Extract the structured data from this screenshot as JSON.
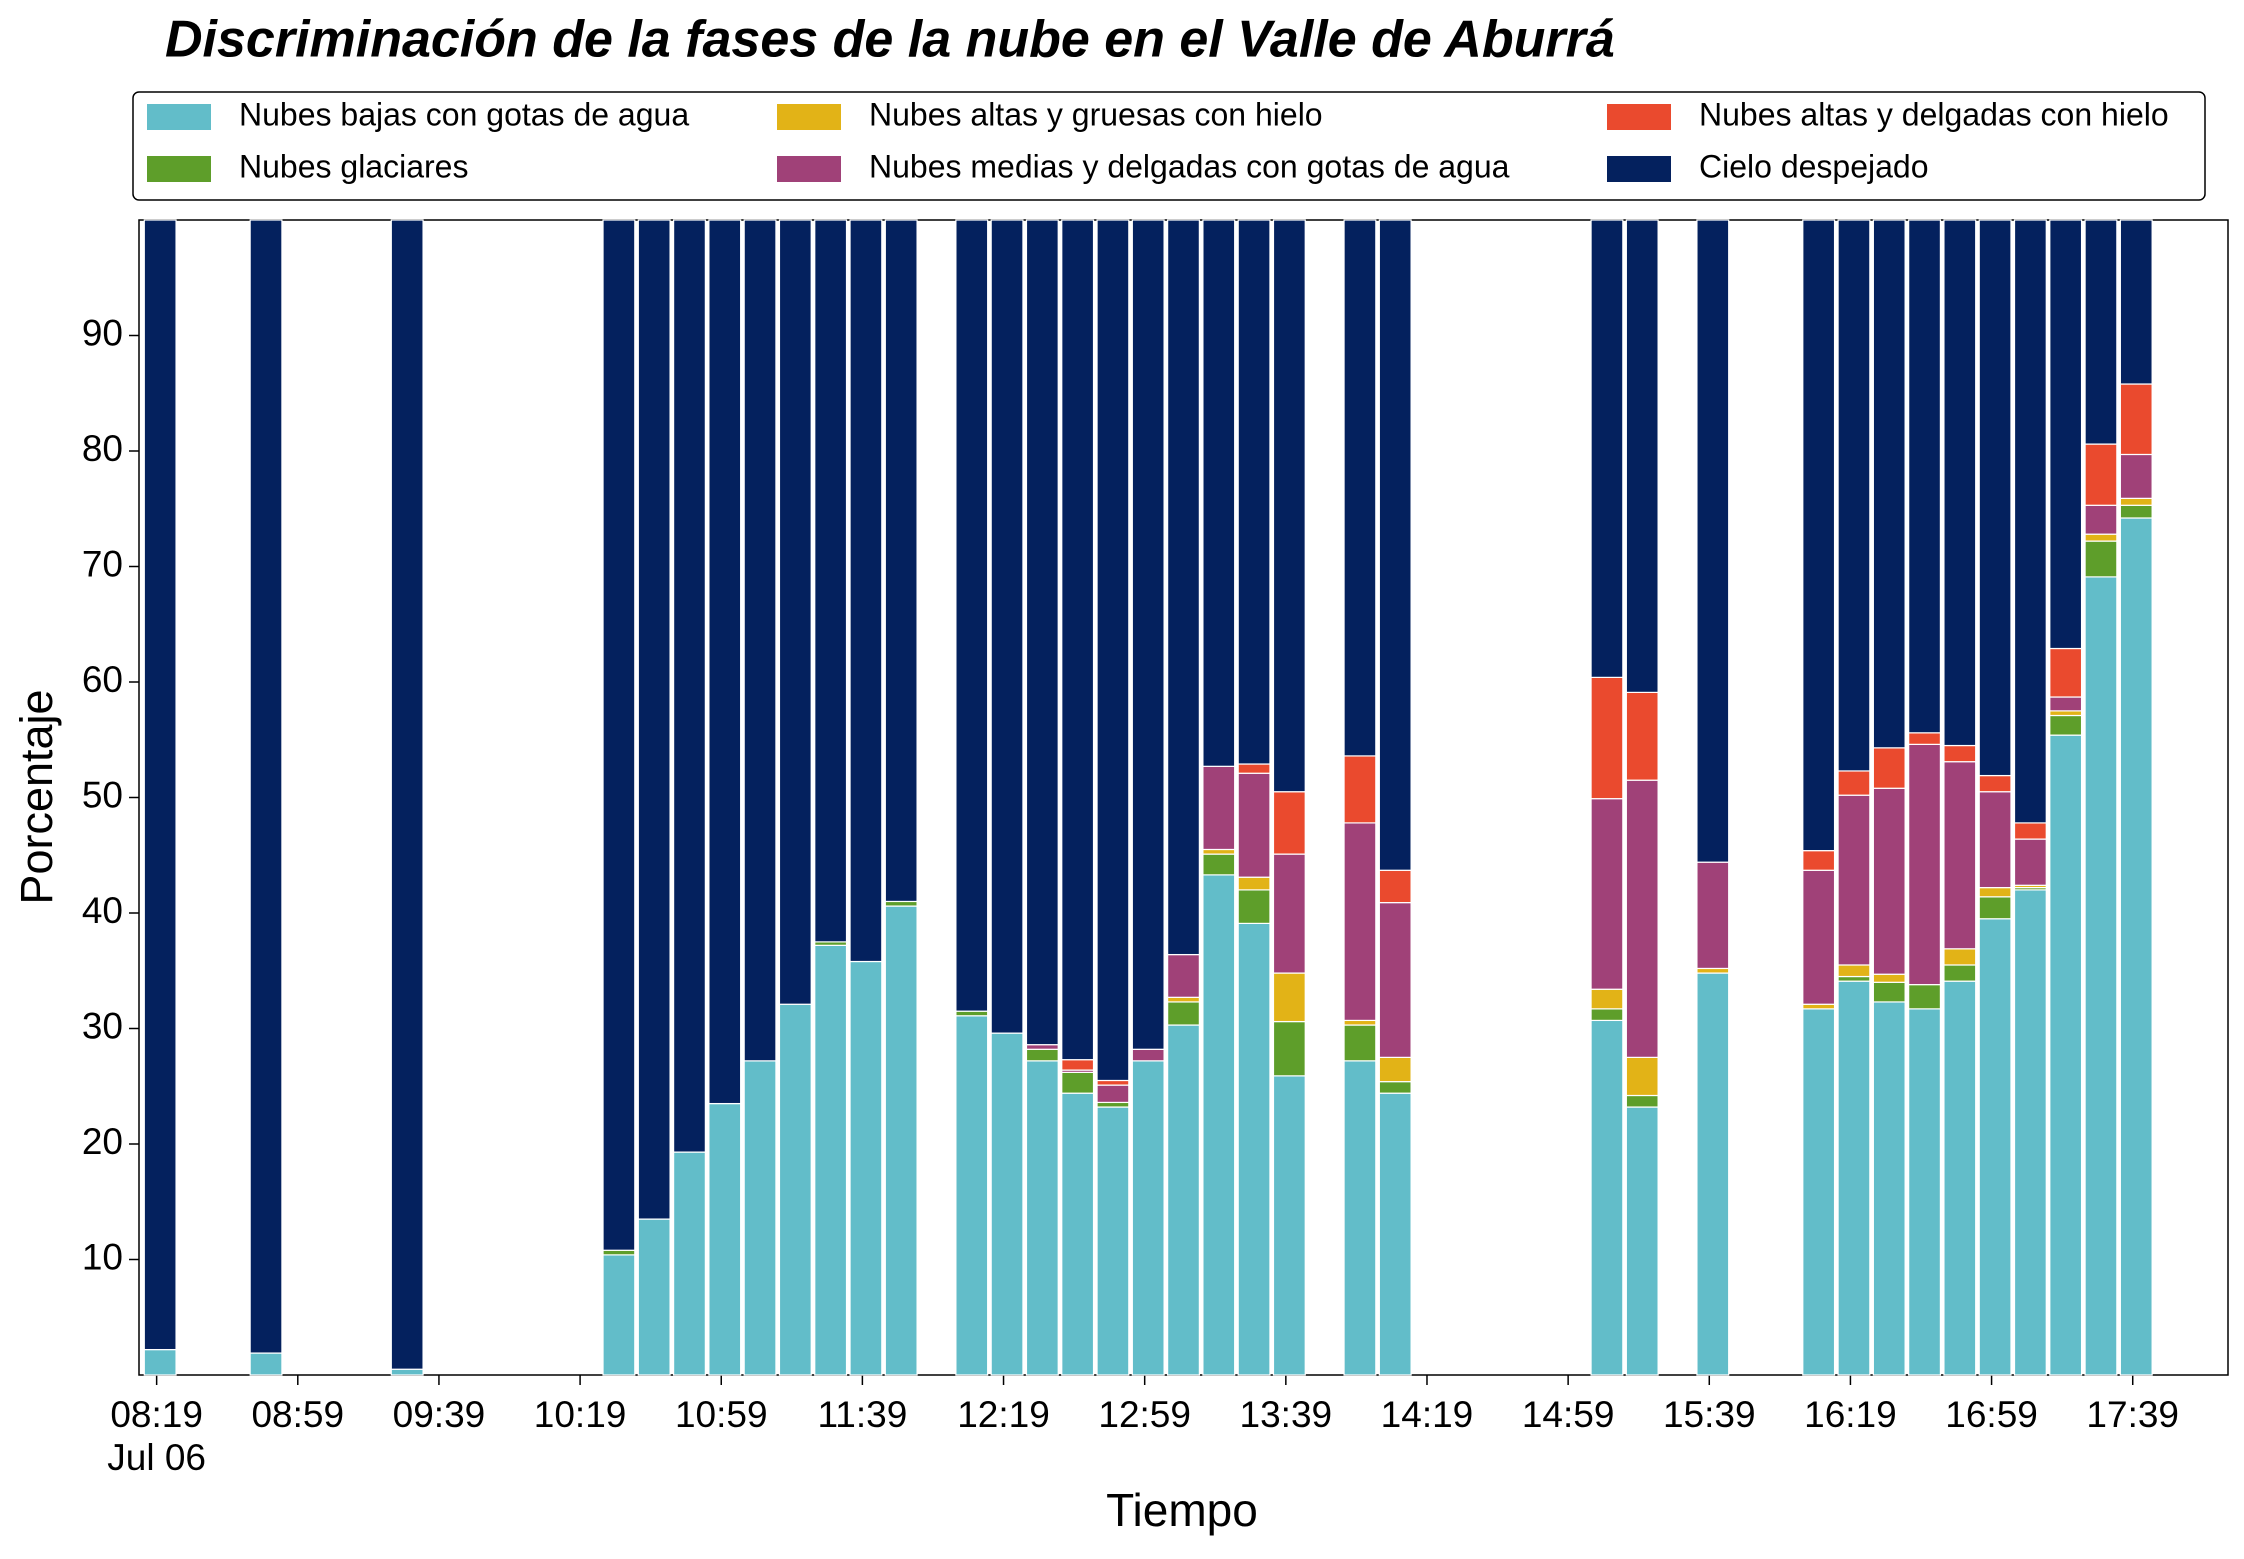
{
  "chart_data": {
    "type": "bar",
    "stacked": true,
    "title": "Discriminación de la fases de la nube en el Valle de Aburrá",
    "xlabel": "Tiempo",
    "ylabel": "Porcentaje",
    "x": [
      "08:20",
      "08:50",
      "09:30",
      "10:30",
      "10:40",
      "10:50",
      "11:00",
      "11:10",
      "11:20",
      "11:30",
      "11:40",
      "11:50",
      "12:10",
      "12:20",
      "12:30",
      "12:40",
      "12:50",
      "13:00",
      "13:10",
      "13:20",
      "13:30",
      "13:40",
      "14:00",
      "14:10",
      "15:10",
      "15:20",
      "15:40",
      "16:10",
      "16:20",
      "16:30",
      "16:40",
      "16:50",
      "17:00",
      "17:10",
      "17:20",
      "17:30",
      "17:40"
    ],
    "xlim": [
      "08:14",
      "18:06"
    ],
    "xticks": [
      "08:19",
      "08:59",
      "09:39",
      "10:19",
      "10:59",
      "11:39",
      "12:19",
      "12:59",
      "13:39",
      "14:19",
      "14:59",
      "15:39",
      "16:19",
      "16:59",
      "17:39"
    ],
    "xtick_date": "Jul 06",
    "ylim": [
      0,
      100
    ],
    "yticks": [
      10,
      20,
      30,
      40,
      50,
      60,
      70,
      80,
      90
    ],
    "legend": "top",
    "series": [
      {
        "name": "Nubes bajas con gotas de agua",
        "color": "#62bdc9",
        "values": [
          2.2,
          1.9,
          0.5,
          10.4,
          13.5,
          19.3,
          23.5,
          27.2,
          32.1,
          37.2,
          35.8,
          40.6,
          31.1,
          29.6,
          27.2,
          24.4,
          23.2,
          27.2,
          30.3,
          43.3,
          39.1,
          25.9,
          27.2,
          24.4,
          30.7,
          23.2,
          34.8,
          31.7,
          34.1,
          32.3,
          31.7,
          34.1,
          39.5,
          42.0,
          55.4,
          69.1,
          74.2
        ]
      },
      {
        "name": "Nubes glaciares",
        "color": "#5e9e2a",
        "values": [
          0,
          0,
          0,
          0.4,
          0,
          0,
          0,
          0,
          0,
          0.3,
          0,
          0.4,
          0.4,
          0,
          1.0,
          1.8,
          0.4,
          0,
          2.0,
          1.8,
          2.9,
          4.7,
          3.1,
          1.0,
          1.0,
          1.0,
          0,
          0,
          0.4,
          1.7,
          2.1,
          1.4,
          1.9,
          0.2,
          1.7,
          3.1,
          1.1
        ]
      },
      {
        "name": "Nubes altas y gruesas con hielo",
        "color": "#e2b317",
        "values": [
          0,
          0,
          0,
          0,
          0,
          0,
          0,
          0,
          0,
          0,
          0,
          0,
          0,
          0,
          0,
          0,
          0,
          0,
          0.4,
          0.4,
          1.1,
          4.2,
          0.4,
          2.1,
          1.7,
          3.3,
          0.4,
          0.4,
          1.0,
          0.7,
          0,
          1.4,
          0.8,
          0.2,
          0.4,
          0.6,
          0.6
        ]
      },
      {
        "name": "Nubes medias y delgadas con gotas de agua",
        "color": "#a04178",
        "values": [
          0,
          0,
          0,
          0,
          0,
          0,
          0,
          0,
          0,
          0,
          0,
          0,
          0,
          0,
          0.4,
          0.2,
          1.5,
          1.0,
          3.7,
          7.2,
          9.0,
          10.3,
          17.1,
          13.4,
          16.5,
          24.0,
          9.2,
          11.6,
          14.7,
          16.1,
          20.8,
          16.2,
          8.3,
          4.0,
          1.2,
          2.5,
          3.8
        ]
      },
      {
        "name": "Nubes altas y delgadas con hielo",
        "color": "#ea4a2e",
        "values": [
          0,
          0,
          0,
          0,
          0,
          0,
          0,
          0,
          0,
          0,
          0,
          0,
          0,
          0,
          0,
          0.9,
          0.4,
          0,
          0,
          0,
          0.8,
          5.4,
          5.8,
          2.8,
          10.5,
          7.6,
          0,
          1.7,
          2.1,
          3.5,
          1.0,
          1.4,
          1.4,
          1.4,
          4.2,
          5.3,
          6.1
        ]
      },
      {
        "name": "Cielo despejado",
        "color": "#04215e",
        "values": [
          97.8,
          98.1,
          99.5,
          89.2,
          86.5,
          80.7,
          76.5,
          72.8,
          67.9,
          62.5,
          64.2,
          59.0,
          68.5,
          70.4,
          71.4,
          72.7,
          74.5,
          71.8,
          63.6,
          47.3,
          47.1,
          49.5,
          46.4,
          56.3,
          39.6,
          40.9,
          55.6,
          54.6,
          47.7,
          45.7,
          44.4,
          45.5,
          48.1,
          52.2,
          37.1,
          19.4,
          14.2
        ]
      }
    ]
  }
}
